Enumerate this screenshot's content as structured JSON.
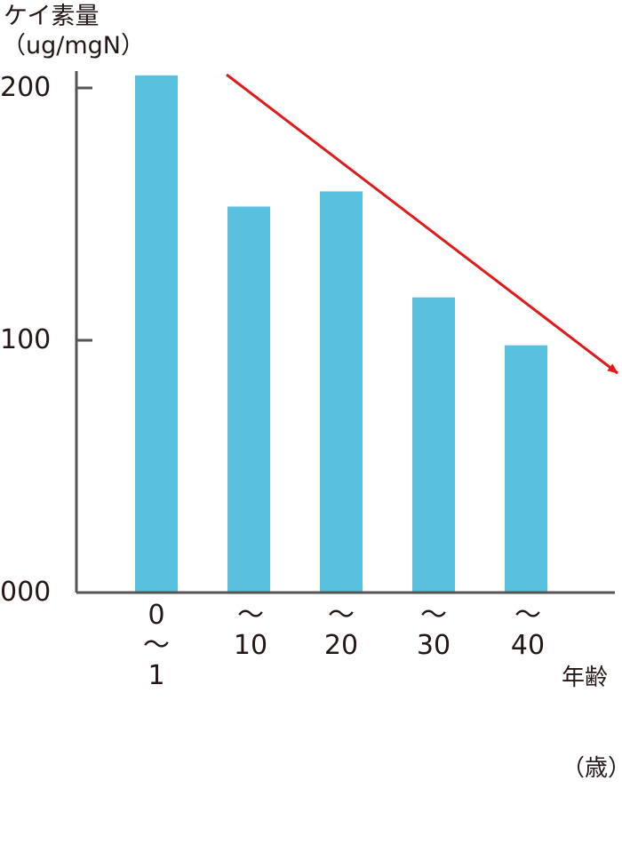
{
  "chart_data": {
    "type": "bar",
    "title": "",
    "ylabel_line1": "ケイ素量",
    "ylabel_line2": "（ug/mgN）",
    "xlabel_line1": "年齢",
    "xlabel_line2": "（歳）",
    "categories": [
      "0\n～\n1",
      "～\n10",
      "～\n20",
      "～\n30",
      "～\n40"
    ],
    "values": [
      205,
      153,
      159,
      117,
      98
    ],
    "ylim": [
      0,
      200
    ],
    "yticks": [
      0,
      100,
      200
    ],
    "ytick_labels": [
      "000",
      "100",
      "200"
    ],
    "grid": false,
    "bar_color": "#5ac0e0",
    "axis_color": "#555555",
    "trend_arrow": {
      "direction": "decreasing",
      "color": "#e11b1b"
    }
  }
}
